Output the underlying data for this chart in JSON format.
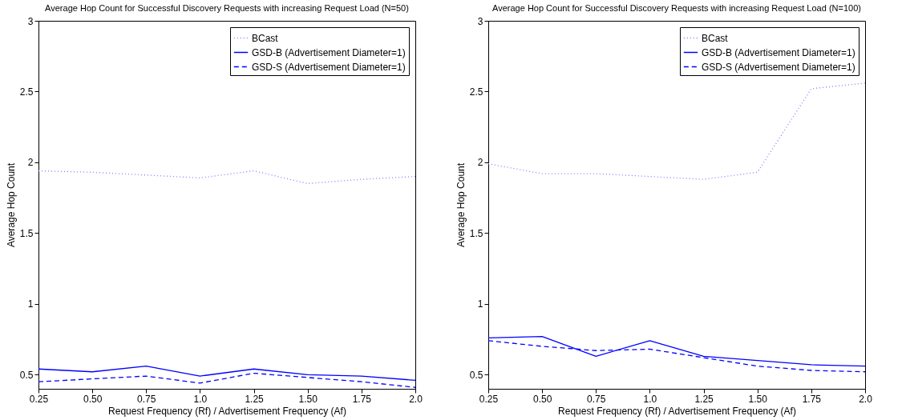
{
  "chart_data": [
    {
      "type": "line",
      "title": "Average Hop Count for Successful Discovery Requests with increasing Request Load (N=50)",
      "xlabel": "Request Frequency (Rf) / Advertisement Frequency (Af)",
      "ylabel": "Average Hop Count",
      "x": [
        0.25,
        0.5,
        0.75,
        1.0,
        1.25,
        1.5,
        1.75,
        2.0
      ],
      "series": [
        {
          "name": "BCast",
          "color": "#8080ff",
          "line_style": "dotted",
          "values": [
            1.94,
            1.93,
            1.91,
            1.89,
            1.94,
            1.85,
            1.88,
            1.9
          ]
        },
        {
          "name": "GSD-B (Advertisement Diameter=1)",
          "color": "#0000ff",
          "line_style": "solid",
          "values": [
            0.54,
            0.52,
            0.56,
            0.49,
            0.54,
            0.5,
            0.49,
            0.46
          ]
        },
        {
          "name": "GSD-S (Advertisement Diameter=1)",
          "color": "#0000ff",
          "line_style": "dashed",
          "values": [
            0.45,
            0.47,
            0.49,
            0.44,
            0.51,
            0.48,
            0.45,
            0.41
          ]
        }
      ],
      "xlim": [
        0.25,
        2.0
      ],
      "xticks": [
        0.25,
        {
          "value": 0.5,
          "label": "0.50"
        },
        0.75,
        {
          "value": 1.0,
          "label": "1.0"
        },
        1.25,
        {
          "value": 1.5,
          "label": "1.50"
        },
        1.75,
        {
          "value": 2.0,
          "label": "2.0"
        }
      ],
      "ylim": [
        0.4,
        3
      ],
      "yticks": [
        0.5,
        1,
        1.5,
        2,
        2.5,
        3
      ],
      "grid": false,
      "legend": "top right"
    },
    {
      "type": "line",
      "title": "Average Hop Count for Successful Discovery Requests with increasing Request Load (N=100)",
      "xlabel": "Request Frequency (Rf) / Advertisement Frequency (Af)",
      "ylabel": "Average Hop Count",
      "x": [
        0.25,
        0.5,
        0.75,
        1.0,
        1.25,
        1.5,
        1.75,
        2.0
      ],
      "series": [
        {
          "name": "BCast",
          "color": "#8080ff",
          "line_style": "dotted",
          "values": [
            1.99,
            1.92,
            1.92,
            1.9,
            1.88,
            1.93,
            2.52,
            2.56
          ]
        },
        {
          "name": "GSD-B (Advertisement Diameter=1)",
          "color": "#0000ff",
          "line_style": "solid",
          "values": [
            0.76,
            0.77,
            0.63,
            0.74,
            0.63,
            0.6,
            0.57,
            0.56
          ]
        },
        {
          "name": "GSD-S (Advertisement Diameter=1)",
          "color": "#0000ff",
          "line_style": "dashed",
          "values": [
            0.74,
            0.7,
            0.67,
            0.68,
            0.62,
            0.56,
            0.53,
            0.52
          ]
        }
      ],
      "xlim": [
        0.25,
        2.0
      ],
      "xticks": [
        0.25,
        {
          "value": 0.5,
          "label": "0.50"
        },
        0.75,
        {
          "value": 1.0,
          "label": "1.0"
        },
        1.25,
        {
          "value": 1.5,
          "label": "1.50"
        },
        1.75,
        {
          "value": 2.0,
          "label": "2.0"
        }
      ],
      "ylim": [
        0.4,
        3
      ],
      "yticks": [
        0.5,
        1,
        1.5,
        2,
        2.5,
        3
      ],
      "grid": false,
      "legend": "top right"
    }
  ]
}
